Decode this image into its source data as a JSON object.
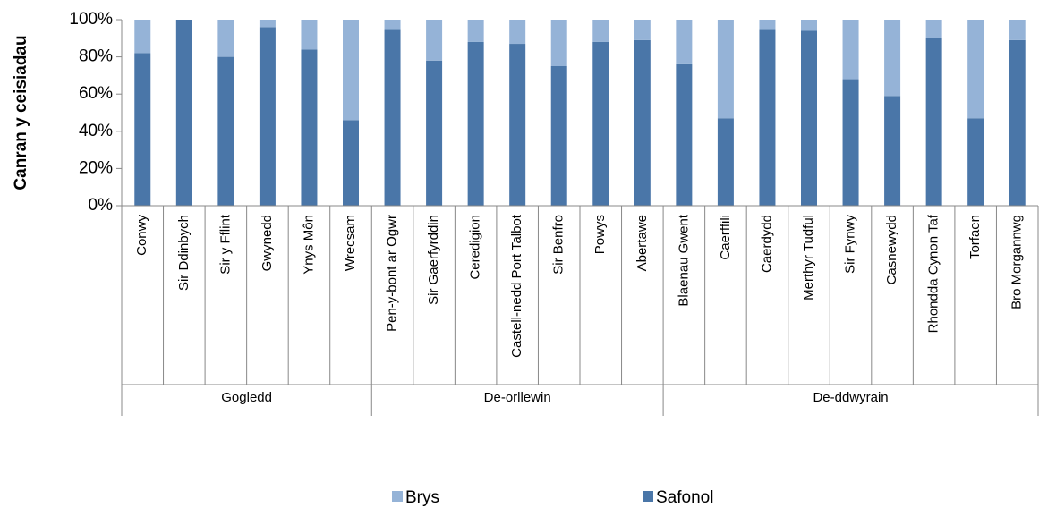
{
  "chart_data": {
    "type": "stacked_bar",
    "y_label": "Canran y ceisiadau",
    "groups": [
      {
        "name": "Gogledd",
        "categories": [
          "Conwy",
          "Sir Ddinbych",
          "Sir y Fflint",
          "Gwynedd",
          "Ynys Môn",
          "Wrecsam"
        ]
      },
      {
        "name": "De-orllewin",
        "categories": [
          "Pen-y-bont ar Ogwr",
          "Sir Gaerfyrddin",
          "Ceredigion",
          "Castell-nedd Port Talbot",
          "Sir Benfro",
          "Powys",
          "Abertawe"
        ]
      },
      {
        "name": "De-ddwyrain",
        "categories": [
          "Blaenau Gwent",
          "Caerffili",
          "Caerdydd",
          "Merthyr Tudful",
          "Sir Fynwy",
          "Casnewydd",
          "Rhondda Cynon Taf",
          "Torfaen",
          "Bro Morgannwg"
        ]
      }
    ],
    "series": [
      {
        "name": "Brys",
        "color": "#95b3d7",
        "values": [
          18,
          0,
          20,
          4,
          16,
          54,
          5,
          22,
          12,
          13,
          25,
          12,
          11,
          24,
          53,
          5,
          6,
          32,
          41,
          10,
          53,
          11
        ]
      },
      {
        "name": "Safonol",
        "color": "#4a76a8",
        "values": [
          82,
          100,
          80,
          96,
          84,
          46,
          95,
          78,
          88,
          87,
          75,
          88,
          89,
          76,
          47,
          95,
          94,
          68,
          59,
          90,
          47,
          89
        ]
      }
    ],
    "ylim": [
      0,
      100
    ],
    "yticks": [
      {
        "value": 0,
        "label": "0%"
      },
      {
        "value": 20,
        "label": "20%"
      },
      {
        "value": 40,
        "label": "40%"
      },
      {
        "value": 60,
        "label": "60%"
      },
      {
        "value": 80,
        "label": "80%"
      },
      {
        "value": 100,
        "label": "100%"
      }
    ],
    "legend": "bottom"
  }
}
